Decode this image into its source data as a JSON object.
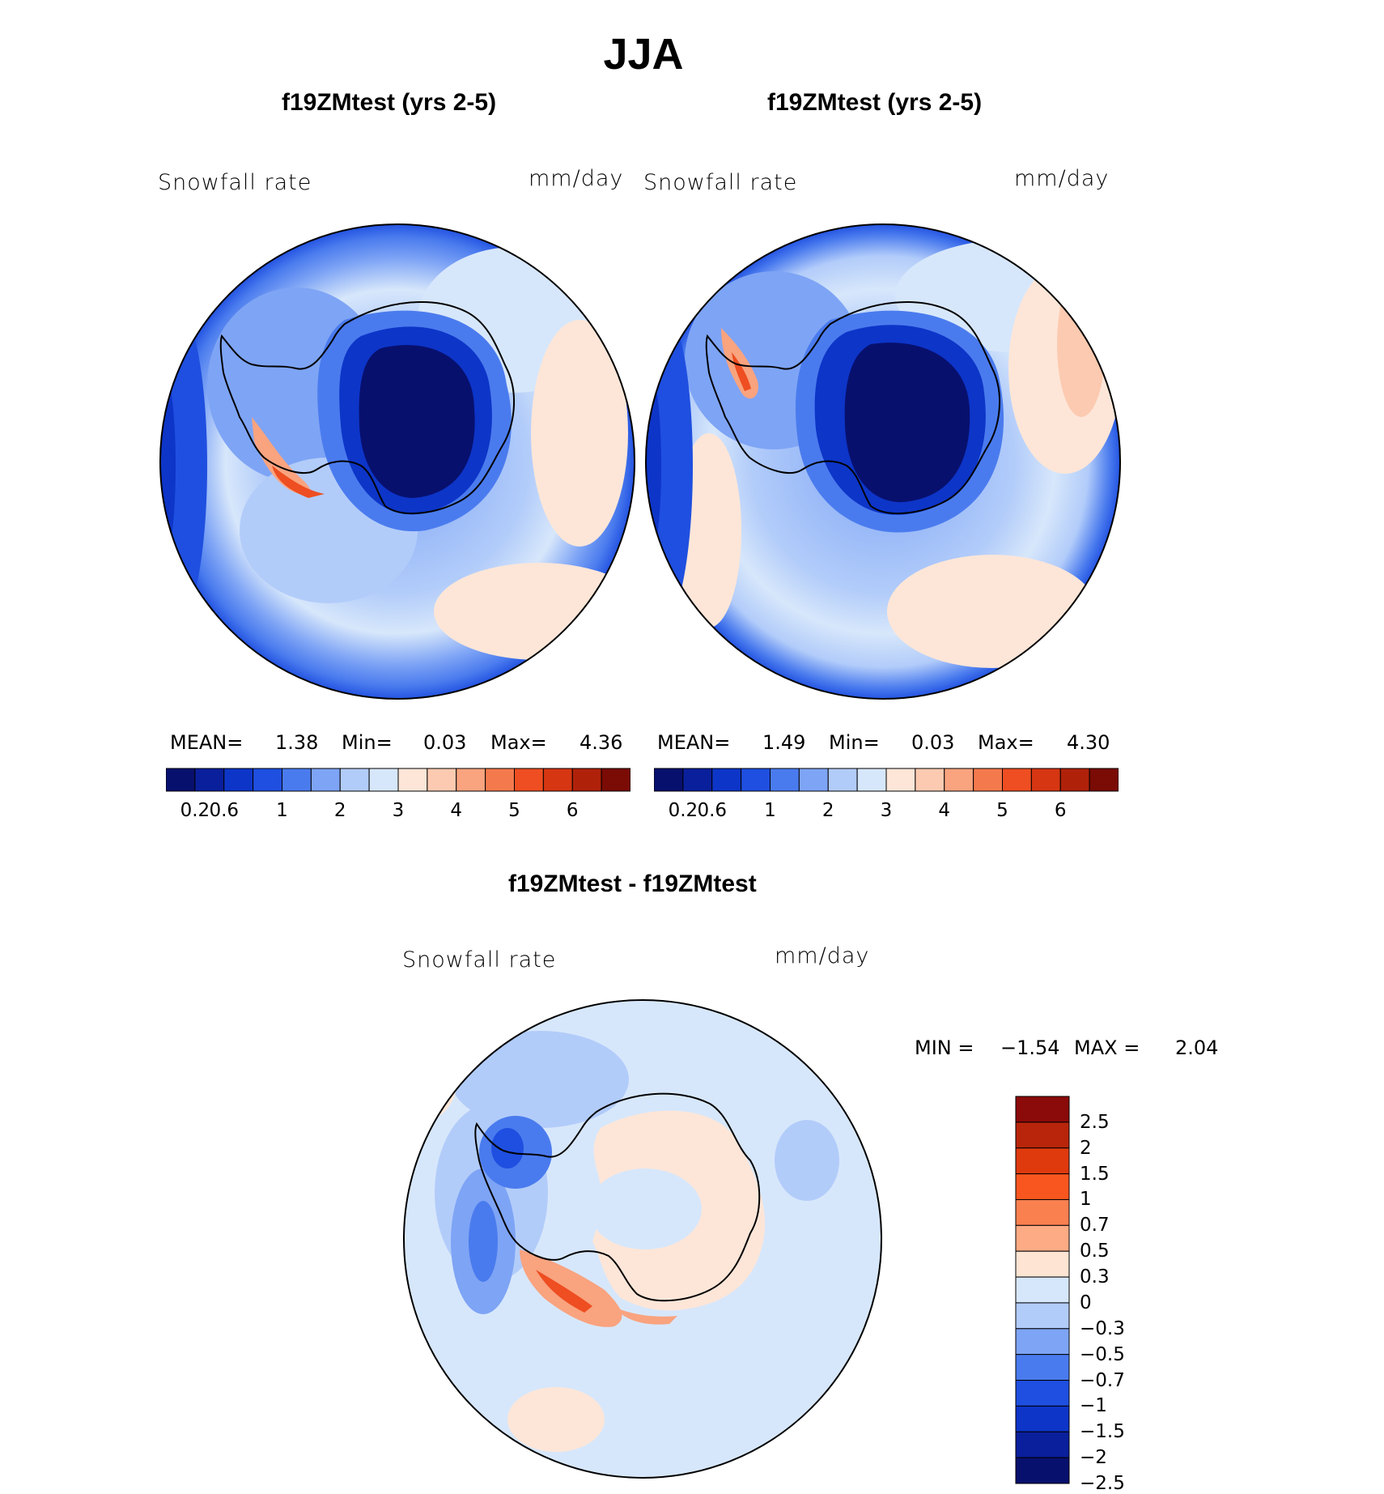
{
  "title": "JJA",
  "panels": [
    {
      "title": "f19ZMtest (yrs 2-5)",
      "variable": "Snowfall rate",
      "units": "mm/day",
      "stats": {
        "mean_label": "MEAN=",
        "mean": "1.38",
        "min_label": "Min=",
        "min": "0.03",
        "max_label": "Max=",
        "max": "4.36"
      },
      "colorbar_ticks": [
        "0.2",
        "0.6",
        "1",
        "2",
        "3",
        "4",
        "5",
        "6"
      ]
    },
    {
      "title": "f19ZMtest (yrs 2-5)",
      "variable": "Snowfall rate",
      "units": "mm/day",
      "stats": {
        "mean_label": "MEAN=",
        "mean": "1.49",
        "min_label": "Min=",
        "min": "0.03",
        "max_label": "Max=",
        "max": "4.30"
      },
      "colorbar_ticks": [
        "0.2",
        "0.6",
        "1",
        "2",
        "3",
        "4",
        "5",
        "6"
      ]
    }
  ],
  "diff": {
    "title": "f19ZMtest - f19ZMtest",
    "variable": "Snowfall rate",
    "units": "mm/day",
    "min_label": "MIN =",
    "min": "−1.54",
    "max_label": "MAX =",
    "max": "2.04",
    "colorbar_ticks": [
      "2.5",
      "2",
      "1.5",
      "1",
      "0.7",
      "0.5",
      "0.3",
      "0",
      "−0.3",
      "−0.5",
      "−0.7",
      "−1",
      "−1.5",
      "−2",
      "−2.5"
    ]
  },
  "colors": {
    "abs_scale": [
      "#08106e",
      "#0a1f9c",
      "#0d35c8",
      "#1f4fe0",
      "#4a7bee",
      "#7ea4f5",
      "#b2ccfa",
      "#d7e7fb",
      "#fde6d8",
      "#fccab0",
      "#f9a37f",
      "#f47a4d",
      "#ee4e21",
      "#d63612",
      "#b0210a",
      "#7a0b05"
    ],
    "diff_scale": [
      "#8b0a0a",
      "#b8250a",
      "#df3a0e",
      "#f9561f",
      "#fb8050",
      "#fdab85",
      "#fde4d3",
      "#d7e7fb",
      "#b2ccfa",
      "#7ea4f5",
      "#4a7bee",
      "#1f4fe0",
      "#0d35c8",
      "#0a1f9c",
      "#08106e"
    ]
  }
}
